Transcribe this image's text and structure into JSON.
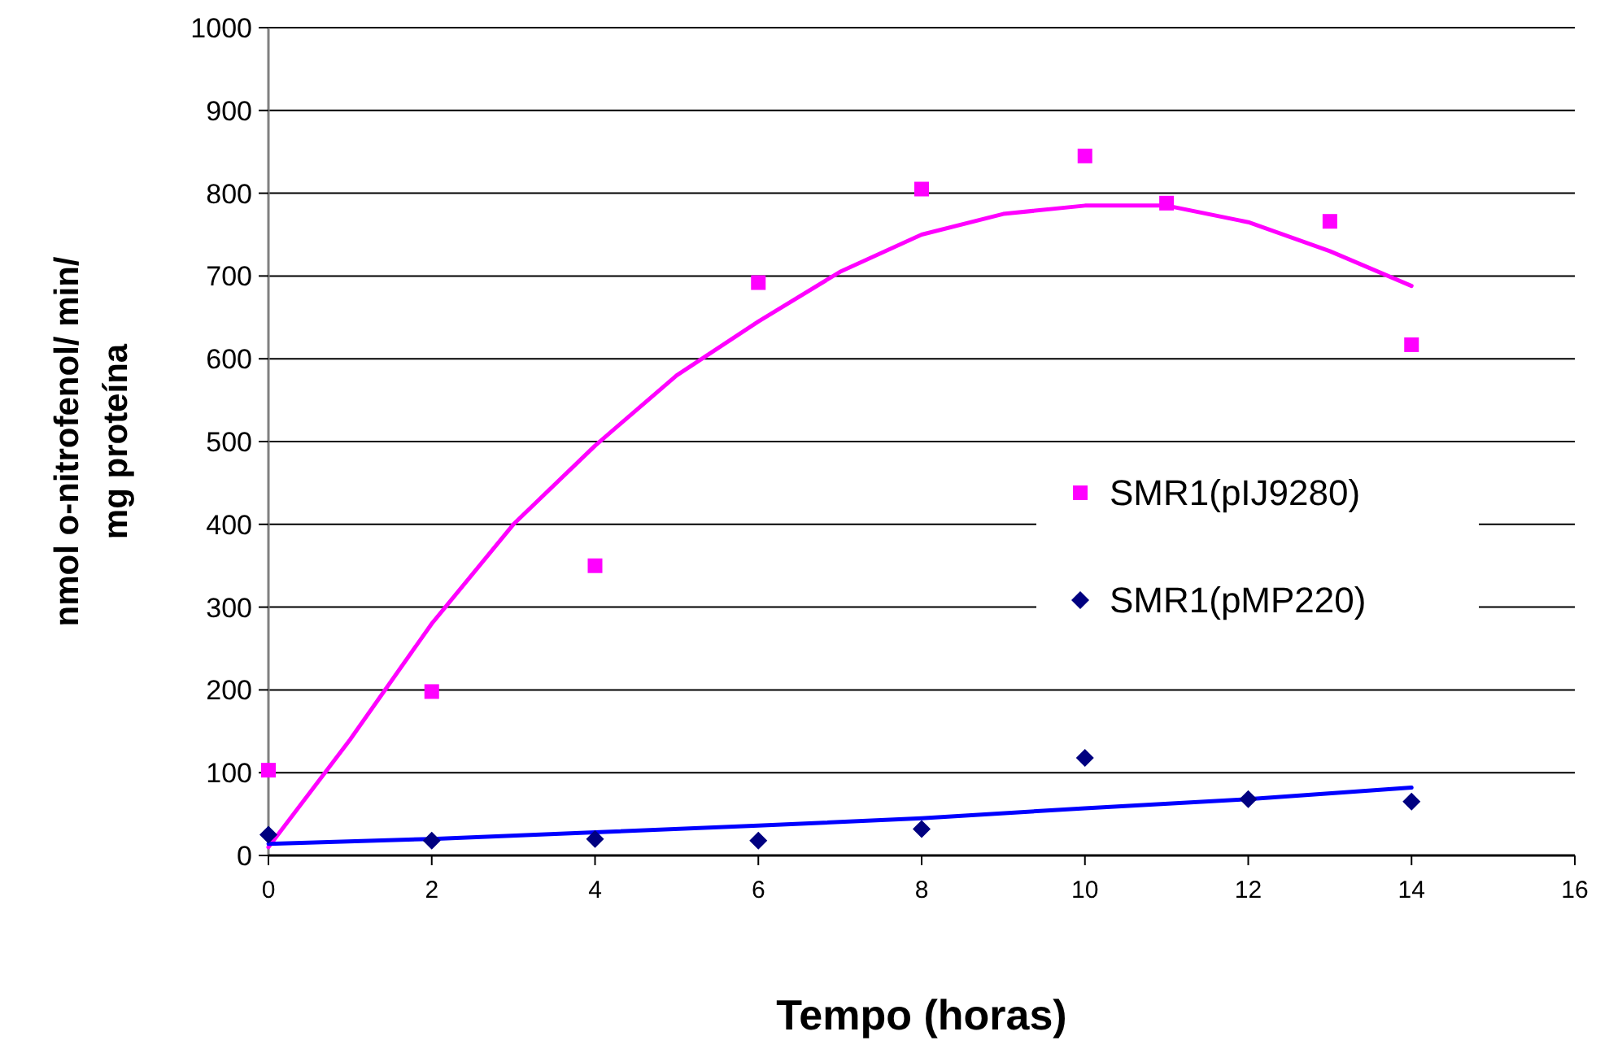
{
  "chart_data": {
    "type": "scatter",
    "xlabel": "Tempo (horas)",
    "ylabel": "nmol o-nitrofenol/ min/\nmg proteína",
    "xlim": [
      0,
      16
    ],
    "xticks": [
      0,
      2,
      4,
      6,
      8,
      10,
      12,
      14,
      16
    ],
    "ylim": [
      0,
      1000
    ],
    "yticks": [
      0,
      100,
      200,
      300,
      400,
      500,
      600,
      700,
      800,
      900,
      1000
    ],
    "grid": "y",
    "legend": "right",
    "series": [
      {
        "type": "line",
        "color": "#ff00ff",
        "x": [
          0,
          1,
          2,
          3,
          4,
          5,
          6,
          7,
          8,
          9,
          10,
          11,
          12,
          13,
          14
        ],
        "values": [
          10,
          140,
          280,
          400,
          495,
          580,
          645,
          705,
          750,
          775,
          785,
          785,
          765,
          730,
          688
        ]
      },
      {
        "type": "line",
        "color": "#0000ff",
        "x": [
          0,
          2,
          4,
          6,
          8,
          10,
          12,
          14
        ],
        "values": [
          14,
          20,
          28,
          36,
          45,
          57,
          68,
          82
        ]
      },
      {
        "name": "SMR1(pIJ9280)",
        "color": "#ff00ff",
        "marker": "square",
        "x": [
          0,
          2,
          4,
          6,
          8,
          10,
          11,
          13,
          14
        ],
        "values": [
          103,
          198,
          350,
          692,
          805,
          845,
          788,
          766,
          617
        ]
      },
      {
        "name": "SMR1(pMP220)",
        "color": "#000080",
        "marker": "diamond",
        "x": [
          0,
          2,
          4,
          6,
          8,
          10,
          12,
          14
        ],
        "values": [
          25,
          18,
          20,
          18,
          32,
          118,
          68,
          65
        ]
      }
    ]
  }
}
